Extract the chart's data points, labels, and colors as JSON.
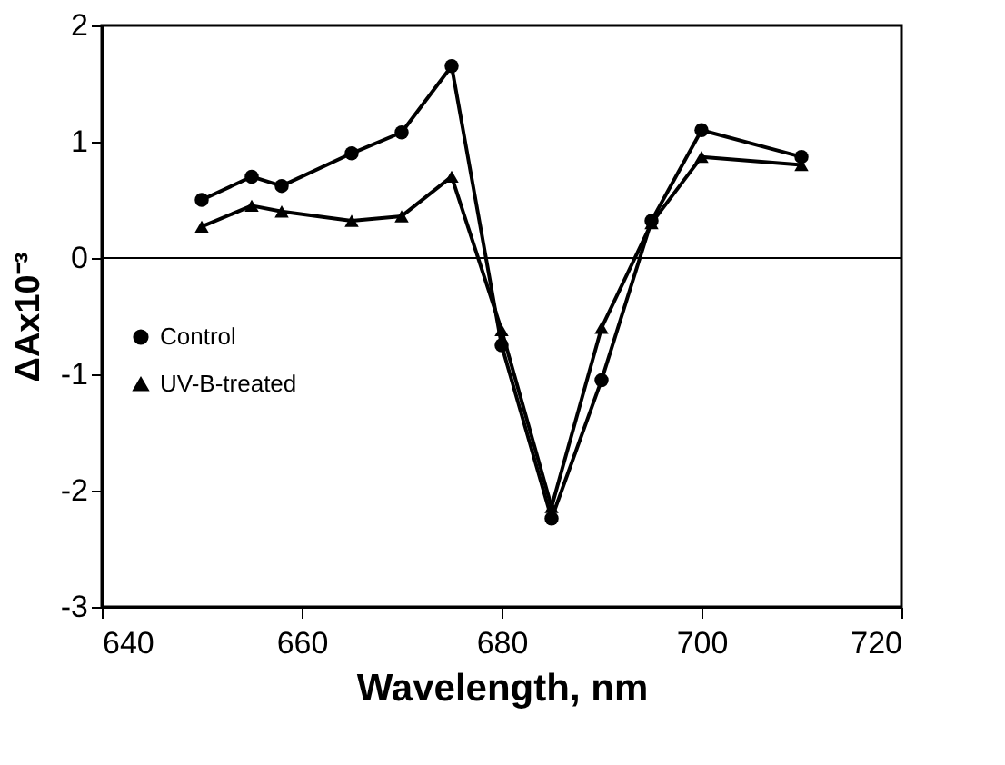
{
  "chart_data": {
    "type": "line",
    "xlabel": "Wavelength, nm",
    "ylabel": "ΔAx10⁻³",
    "x": [
      650,
      655,
      658,
      665,
      670,
      675,
      680,
      685,
      690,
      695,
      700,
      710
    ],
    "series": [
      {
        "name": "Control",
        "color": "#000000",
        "marker": "circle",
        "values": [
          0.5,
          0.7,
          0.62,
          0.9,
          1.08,
          1.65,
          -0.75,
          -2.24,
          -1.05,
          0.32,
          1.1,
          0.87
        ]
      },
      {
        "name": "UV-B-treated",
        "color": "#000000",
        "marker": "triangle",
        "values": [
          0.27,
          0.45,
          0.4,
          0.32,
          0.36,
          0.7,
          -0.62,
          -2.14,
          -0.6,
          0.3,
          0.87,
          0.8
        ]
      }
    ],
    "xlim": [
      640,
      720
    ],
    "xticks": [
      640,
      660,
      680,
      700,
      720
    ],
    "ylim": [
      -3,
      2
    ],
    "yticks": [
      -3,
      -2,
      -1,
      0,
      1,
      2
    ],
    "ref_lines": [
      {
        "axis": "y",
        "value": 0
      }
    ],
    "grid": false,
    "legend": "left",
    "line_style": "solid"
  }
}
